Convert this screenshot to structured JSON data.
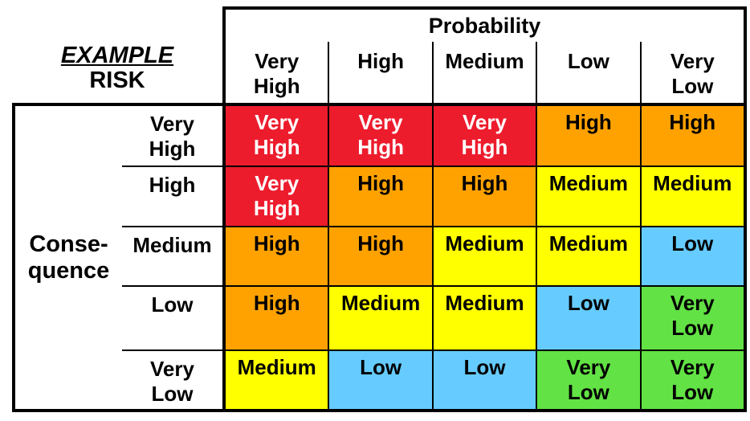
{
  "corner_title": {
    "line1": "EXAMPLE",
    "line2": "RISK"
  },
  "probability": {
    "title": "Probability",
    "levels": [
      "Very\nHigh",
      "High",
      "Medium",
      "Low",
      "Very\nLow"
    ]
  },
  "consequence": {
    "title": "Conse-\nquence",
    "levels": [
      "Very\nHigh",
      "High",
      "Medium",
      "Low",
      "Very\nLow"
    ]
  },
  "palette": {
    "very-high": {
      "bg": "#ED1C2D",
      "fg": "#FFFFFF"
    },
    "high": {
      "bg": "#FFA200",
      "fg": "#000000"
    },
    "medium": {
      "bg": "#FFFF00",
      "fg": "#000000"
    },
    "low": {
      "bg": "#66CCFF",
      "fg": "#000000"
    },
    "very-low": {
      "bg": "#62E244",
      "fg": "#000000"
    }
  },
  "matrix": {
    "rows": [
      [
        {
          "text": "Very\nHigh",
          "level": "very-high"
        },
        {
          "text": "Very\nHigh",
          "level": "very-high"
        },
        {
          "text": "Very\nHigh",
          "level": "very-high"
        },
        {
          "text": "High",
          "level": "high"
        },
        {
          "text": "High",
          "level": "high"
        }
      ],
      [
        {
          "text": "Very\nHigh",
          "level": "very-high"
        },
        {
          "text": "High",
          "level": "high"
        },
        {
          "text": "High",
          "level": "high"
        },
        {
          "text": "Medium",
          "level": "medium"
        },
        {
          "text": "Medium",
          "level": "medium"
        }
      ],
      [
        {
          "text": "High",
          "level": "high"
        },
        {
          "text": "High",
          "level": "high"
        },
        {
          "text": "Medium",
          "level": "medium"
        },
        {
          "text": "Medium",
          "level": "medium"
        },
        {
          "text": "Low",
          "level": "low"
        }
      ],
      [
        {
          "text": "High",
          "level": "high"
        },
        {
          "text": "Medium",
          "level": "medium"
        },
        {
          "text": "Medium",
          "level": "medium"
        },
        {
          "text": "Low",
          "level": "low"
        },
        {
          "text": "Very\nLow",
          "level": "very-low"
        }
      ],
      [
        {
          "text": "Medium",
          "level": "medium"
        },
        {
          "text": "Low",
          "level": "low"
        },
        {
          "text": "Low",
          "level": "low"
        },
        {
          "text": "Very\nLow",
          "level": "very-low"
        },
        {
          "text": "Very\nLow",
          "level": "very-low"
        }
      ]
    ]
  }
}
